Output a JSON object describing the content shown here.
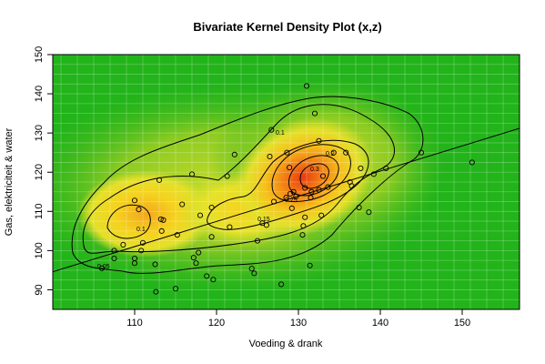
{
  "chart_data": {
    "type": "scatter",
    "title": "Bivariate Kernel Density Plot (x,z)",
    "xlabel": "Voeding & drank",
    "ylabel": "Gas, elektriciteit & water",
    "xlim": [
      100,
      157
    ],
    "ylim": [
      85,
      150
    ],
    "x_ticks": [
      110,
      120,
      130,
      140,
      150
    ],
    "y_ticks": [
      90,
      100,
      110,
      120,
      130,
      140,
      150
    ],
    "grid": true,
    "background": "kernel density heatmap (green low, yellow/orange/red high)",
    "regression_line": {
      "x1": 100,
      "y1": 94.6,
      "x2": 157,
      "y2": 131.2
    },
    "contour_levels": [
      "0.05",
      "0.1",
      "0.15",
      "0.2",
      "0.25",
      "0.3"
    ],
    "points": [
      [
        106,
        95.5
      ],
      [
        107.5,
        100
      ],
      [
        107.5,
        98
      ],
      [
        108.6,
        101.5
      ],
      [
        110,
        112.8
      ],
      [
        110,
        98
      ],
      [
        110,
        96.8
      ],
      [
        110.5,
        110.5
      ],
      [
        110.8,
        100
      ],
      [
        111,
        102
      ],
      [
        112.5,
        96.5
      ],
      [
        112.6,
        89.5
      ],
      [
        113,
        118
      ],
      [
        113.2,
        108
      ],
      [
        113.3,
        105
      ],
      [
        113.5,
        107.8
      ],
      [
        115,
        90.3
      ],
      [
        115.2,
        104
      ],
      [
        115.8,
        111.8
      ],
      [
        117,
        119.5
      ],
      [
        117.2,
        98.2
      ],
      [
        117.5,
        96.8
      ],
      [
        117.8,
        99.5
      ],
      [
        118,
        109
      ],
      [
        118.8,
        93.5
      ],
      [
        119.4,
        103.5
      ],
      [
        119.4,
        111
      ],
      [
        119.6,
        92.6
      ],
      [
        121.3,
        119
      ],
      [
        121.6,
        106
      ],
      [
        122.2,
        124.5
      ],
      [
        124.3,
        95.4
      ],
      [
        124.6,
        94.2
      ],
      [
        125,
        102.5
      ],
      [
        125.6,
        107
      ],
      [
        126.1,
        106.5
      ],
      [
        126.5,
        124
      ],
      [
        126.7,
        130.8
      ],
      [
        127,
        112.5
      ],
      [
        127.9,
        91.4
      ],
      [
        128.5,
        113.5
      ],
      [
        128.6,
        125
      ],
      [
        128.9,
        121.2
      ],
      [
        129,
        114.5
      ],
      [
        129.2,
        110.8
      ],
      [
        129.4,
        115
      ],
      [
        129.7,
        113.8
      ],
      [
        130.5,
        104
      ],
      [
        130.6,
        106.3
      ],
      [
        130.8,
        108.5
      ],
      [
        130.8,
        116
      ],
      [
        131,
        142
      ],
      [
        131.4,
        96.2
      ],
      [
        131.5,
        113.5
      ],
      [
        131.6,
        115
      ],
      [
        132,
        135
      ],
      [
        132.5,
        128
      ],
      [
        132.5,
        115.5
      ],
      [
        132.8,
        109
      ],
      [
        133,
        119
      ],
      [
        133.6,
        116.2
      ],
      [
        134.3,
        125
      ],
      [
        135.8,
        125
      ],
      [
        136.3,
        117.5
      ],
      [
        136.5,
        116.5
      ],
      [
        137.4,
        111
      ],
      [
        137.6,
        121
      ],
      [
        138.6,
        109.8
      ],
      [
        139.2,
        119.5
      ],
      [
        140.7,
        121
      ],
      [
        145,
        125
      ],
      [
        151.2,
        122.5
      ]
    ]
  }
}
